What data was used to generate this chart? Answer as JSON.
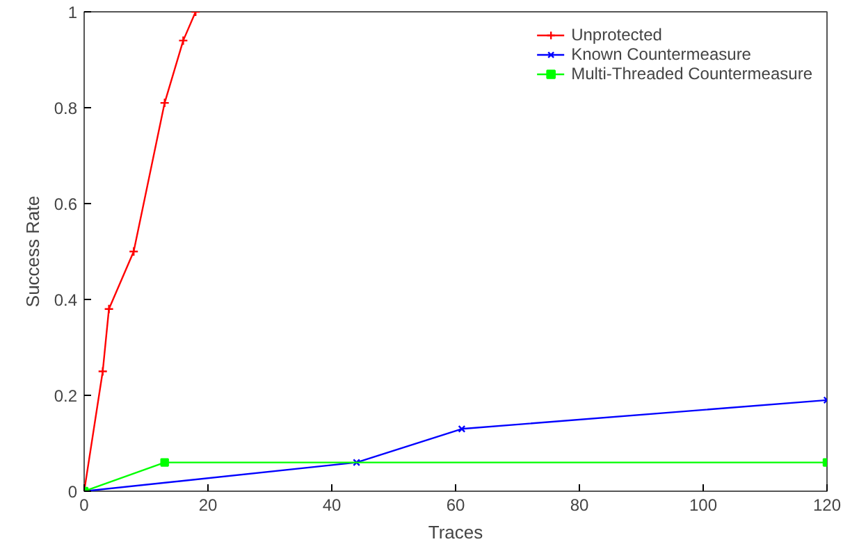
{
  "chart_data": {
    "type": "line",
    "xlabel": "Traces",
    "ylabel": "Success Rate",
    "xlim": [
      0,
      120
    ],
    "ylim": [
      0,
      1
    ],
    "xticks": [
      0,
      20,
      40,
      60,
      80,
      100,
      120
    ],
    "yticks": [
      0,
      0.2,
      0.4,
      0.6,
      0.8,
      1
    ],
    "grid": false,
    "legend": "top right",
    "line_style": "solid",
    "series": [
      {
        "name": "Unprotected",
        "color": "#ff0000",
        "marker": "cross",
        "x": [
          0,
          3,
          4,
          8,
          13,
          16,
          18
        ],
        "values": [
          0,
          0.25,
          0.38,
          0.5,
          0.81,
          0.94,
          1
        ]
      },
      {
        "name": "Known Countermeasure",
        "color": "#0000ff",
        "marker": "x",
        "x": [
          0,
          44,
          61,
          120
        ],
        "values": [
          0,
          0.06,
          0.13,
          0.19
        ]
      },
      {
        "name": "Multi-Threaded Countermeasure",
        "color": "#00ff00",
        "marker": "square",
        "x": [
          0,
          13,
          120
        ],
        "values": [
          0,
          0.06,
          0.06
        ]
      }
    ]
  }
}
